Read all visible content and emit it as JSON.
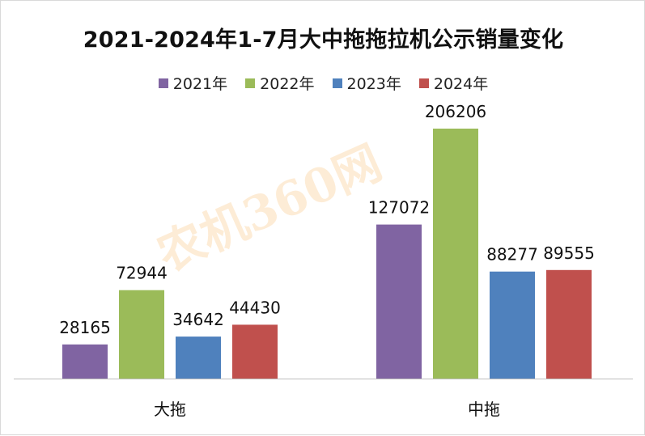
{
  "chart_data": {
    "type": "bar",
    "title": "2021-2024年1-7月大中拖拖拉机公示销量变化",
    "categories": [
      "大拖",
      "中拖"
    ],
    "series": [
      {
        "name": "2021年",
        "color": "#8064a2",
        "values": [
          28165,
          127072
        ]
      },
      {
        "name": "2022年",
        "color": "#9bbb59",
        "values": [
          72944,
          206206
        ]
      },
      {
        "name": "2023年",
        "color": "#4f81bd",
        "values": [
          34642,
          88277
        ]
      },
      {
        "name": "2024年",
        "color": "#c0504d",
        "values": [
          44430,
          89555
        ]
      }
    ],
    "ylim": [
      0,
      206206
    ],
    "legend": "top",
    "grid": false
  },
  "watermark": "农机360网"
}
